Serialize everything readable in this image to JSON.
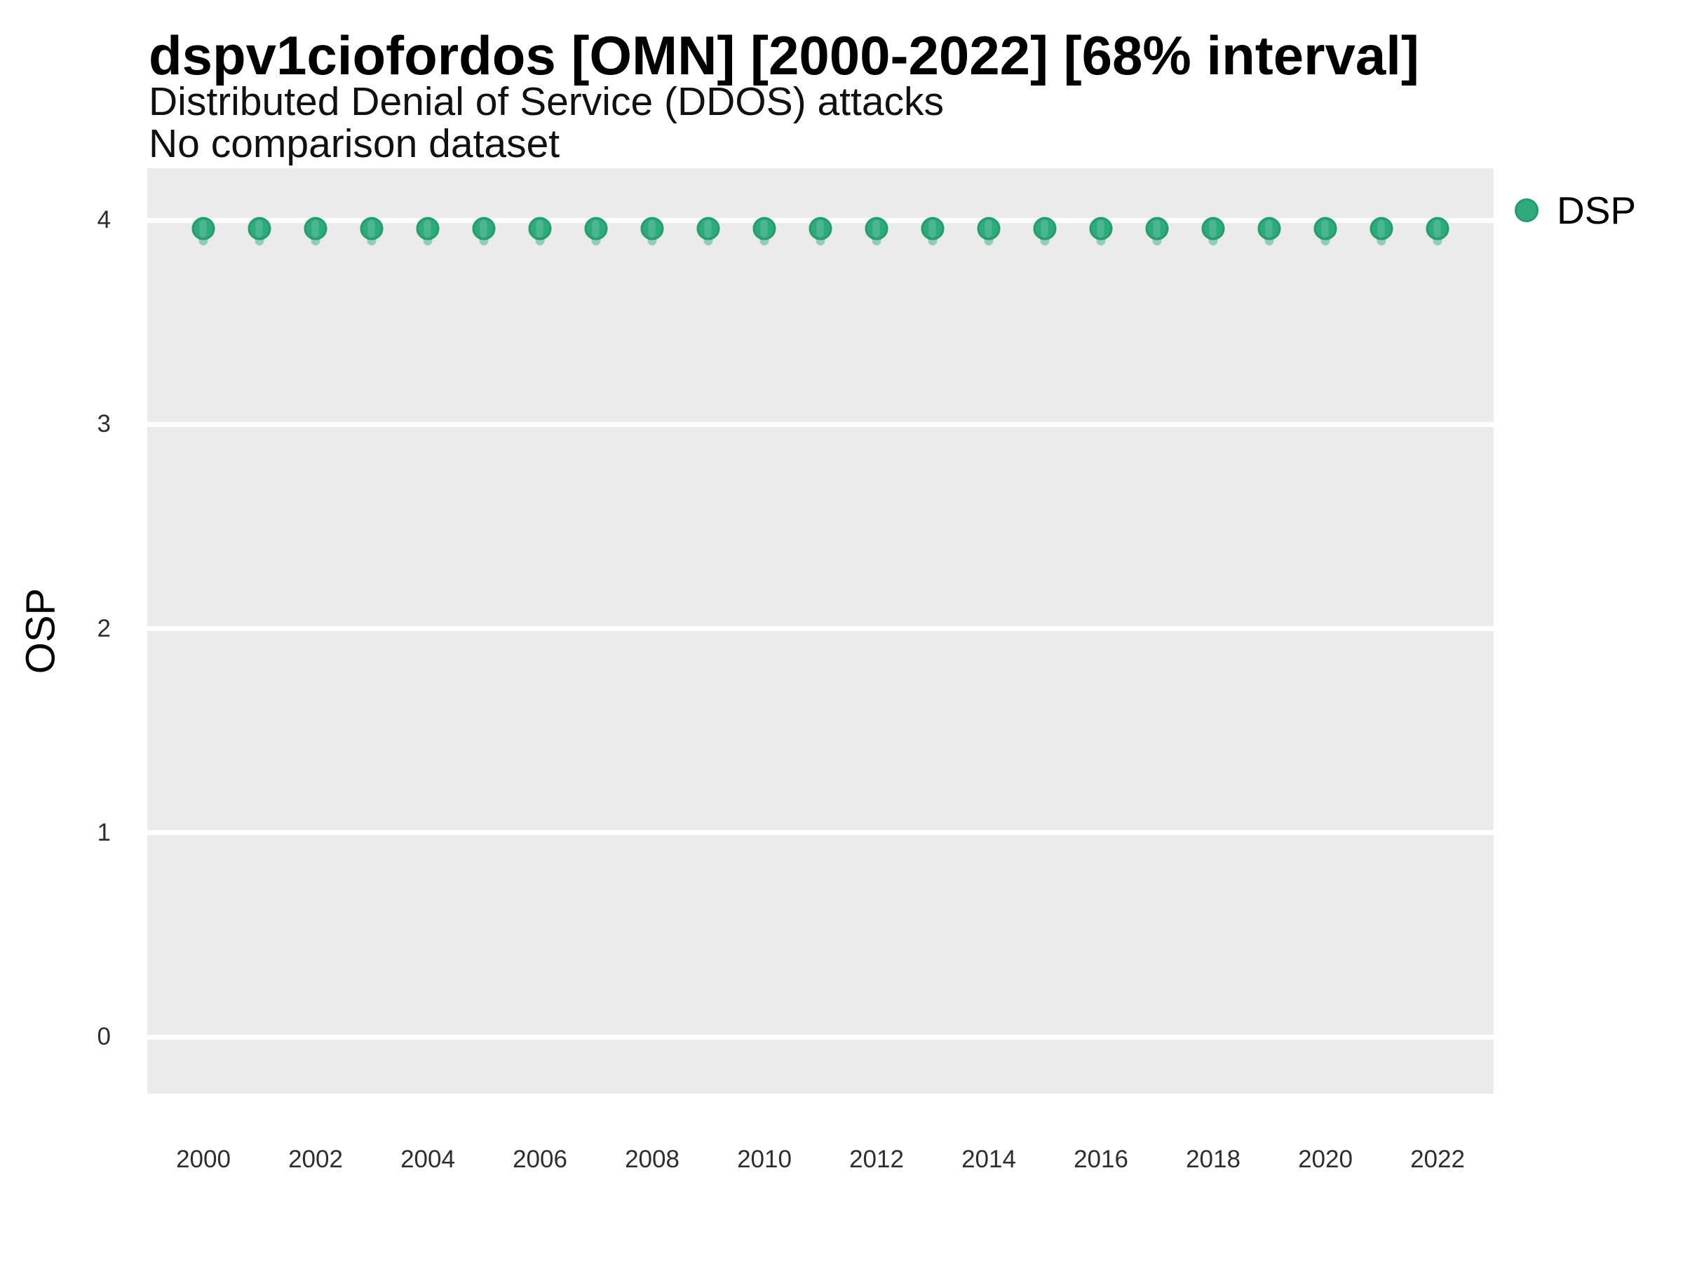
{
  "chart_data": {
    "type": "scatter",
    "title": "dspv1ciofordos [OMN] [2000-2022] [68% interval]",
    "subtitle": "Distributed Denial of Service (DDOS) attacks",
    "subtitle2": "No comparison dataset",
    "xlabel": "",
    "ylabel": "OSP",
    "x": [
      2000,
      2001,
      2002,
      2003,
      2004,
      2005,
      2006,
      2007,
      2008,
      2009,
      2010,
      2011,
      2012,
      2013,
      2014,
      2015,
      2016,
      2017,
      2018,
      2019,
      2020,
      2021,
      2022
    ],
    "series": [
      {
        "name": "DSP",
        "marker": "circle with small 68%-interval tail below point",
        "color": "#2EAB7E",
        "values": [
          3.96,
          3.96,
          3.96,
          3.96,
          3.96,
          3.96,
          3.96,
          3.96,
          3.96,
          3.96,
          3.96,
          3.96,
          3.96,
          3.96,
          3.96,
          3.96,
          3.96,
          3.96,
          3.96,
          3.96,
          3.96,
          3.96,
          3.96
        ]
      }
    ],
    "x_tick_labels": [
      "2000",
      "2002",
      "2004",
      "2006",
      "2008",
      "2010",
      "2012",
      "2014",
      "2016",
      "2018",
      "2020",
      "2022"
    ],
    "y_ticks": [
      "4",
      "3",
      "2",
      "1",
      "0"
    ],
    "y_tick_values": [
      4,
      3,
      2,
      1,
      0
    ],
    "xlim": [
      1999,
      2023
    ],
    "ylim": [
      -0.28,
      4.25
    ],
    "grid": "horizontal major gridlines only, white on gray panel",
    "panel_background": "#EBEBEB",
    "gridline_color": "#FFFFFF",
    "legend_position": "right-top",
    "legend": {
      "entries": [
        {
          "label": "DSP",
          "color": "#2EAB7E"
        }
      ]
    }
  }
}
